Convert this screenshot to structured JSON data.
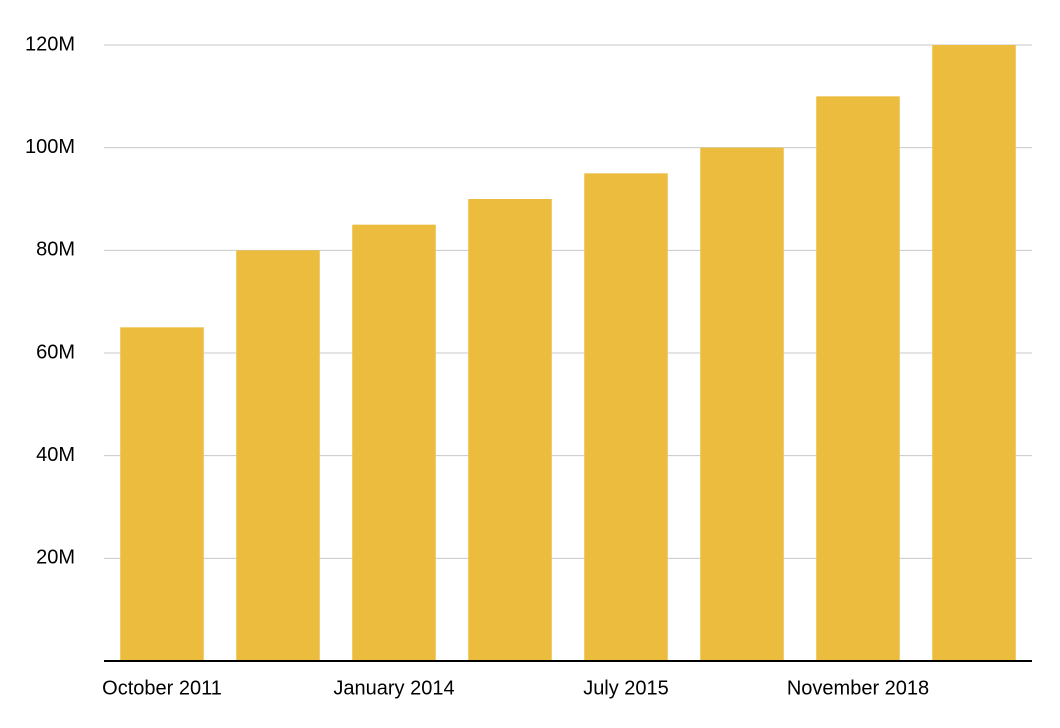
{
  "chart_data": {
    "type": "bar",
    "categories": [
      "October 2011",
      null,
      "January 2014",
      null,
      "July 2015",
      null,
      "November 2018",
      null
    ],
    "values": [
      65000000,
      80000000,
      85000000,
      90000000,
      95000000,
      100000000,
      110000000,
      120000000
    ],
    "color": "#ecbc3e",
    "ylim": [
      0,
      120000000
    ],
    "yticks": [
      {
        "value": 20000000,
        "label": "20M"
      },
      {
        "value": 40000000,
        "label": "40M"
      },
      {
        "value": 60000000,
        "label": "60M"
      },
      {
        "value": 80000000,
        "label": "80M"
      },
      {
        "value": 100000000,
        "label": "100M"
      },
      {
        "value": 120000000,
        "label": "120M"
      }
    ],
    "grid": true
  }
}
